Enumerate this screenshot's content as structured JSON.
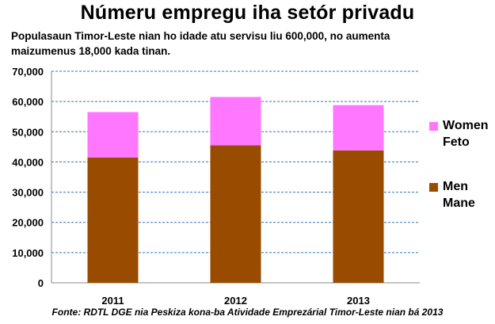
{
  "chart_data": {
    "type": "bar",
    "stacked": true,
    "title": "Númeru empregu iha setór privadu",
    "subtitle_lines": [
      "Populasaun Timor-Leste nian ho idade atu servisu liu 600,000, no aumenta",
      "maizumenus 18,000 kada tinan."
    ],
    "source": "Fonte: RDTL DGE nia Peskiza kona-ba Atividade Emprezárial Timor-Leste nian bá 2013",
    "categories": [
      "2011",
      "2012",
      "2013"
    ],
    "series": [
      {
        "name": "Men",
        "name_alt": "Mane",
        "color": "#994c00",
        "values": [
          41500,
          45500,
          43800
        ]
      },
      {
        "name": "Women",
        "name_alt": "Feto",
        "color": "#ff77ff",
        "values": [
          15000,
          16000,
          15000
        ]
      }
    ],
    "ylim": [
      0,
      70000
    ],
    "yticks": [
      0,
      10000,
      20000,
      30000,
      40000,
      50000,
      60000,
      70000
    ],
    "ytick_labels": [
      "0",
      "10,000",
      "20,000",
      "30,000",
      "40,000",
      "50,000",
      "60,000",
      "70,000"
    ],
    "grid": true,
    "legend_position": "right"
  }
}
